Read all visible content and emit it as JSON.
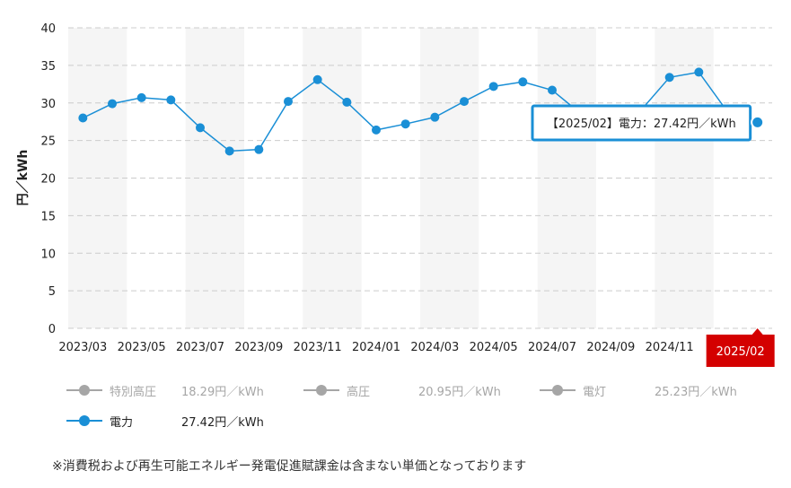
{
  "chart_data": {
    "type": "line",
    "ylabel": "円／kWh",
    "ylim": [
      0,
      40
    ],
    "yticks": [
      0,
      5,
      10,
      15,
      20,
      25,
      30,
      35,
      40
    ],
    "grid": true,
    "categories": [
      "2023/03",
      "2023/04",
      "2023/05",
      "2023/06",
      "2023/07",
      "2023/08",
      "2023/09",
      "2023/10",
      "2023/11",
      "2023/12",
      "2024/01",
      "2024/02",
      "2024/03",
      "2024/04",
      "2024/05",
      "2024/06",
      "2024/07",
      "2024/08",
      "2024/09",
      "2024/10",
      "2024/11",
      "2024/12",
      "2025/01",
      "2025/02"
    ],
    "x_tick_labels": [
      "2023/03",
      "2023/05",
      "2023/07",
      "2023/09",
      "2023/11",
      "2024/01",
      "2024/03",
      "2024/05",
      "2024/07",
      "2024/09",
      "2024/11",
      "2025/02"
    ],
    "highlight_category": "2025/02",
    "series": [
      {
        "name": "電力",
        "color": "#1a8fd6",
        "values": [
          28.0,
          29.9,
          30.7,
          30.4,
          26.7,
          23.6,
          23.8,
          30.2,
          33.1,
          30.1,
          26.4,
          27.2,
          28.1,
          30.2,
          32.2,
          32.8,
          31.7,
          28.5,
          26.4,
          28.9,
          33.4,
          34.1,
          28.7,
          27.42
        ]
      }
    ],
    "tooltip": {
      "text": "【2025/02】電力：27.42円／kWh"
    }
  },
  "legend": {
    "items": [
      {
        "name": "特別高圧",
        "value": "18.29円／kWh",
        "active": false,
        "color": "#a6a6a6"
      },
      {
        "name": "高圧",
        "value": "20.95円／kWh",
        "active": false,
        "color": "#a6a6a6"
      },
      {
        "name": "電灯",
        "value": "25.23円／kWh",
        "active": false,
        "color": "#a6a6a6"
      },
      {
        "name": "電力",
        "value": "27.42円／kWh",
        "active": true,
        "color": "#1a8fd6"
      }
    ]
  },
  "note": "※消費税および再生可能エネルギー発電促進賦課金は含まない単価となっております"
}
